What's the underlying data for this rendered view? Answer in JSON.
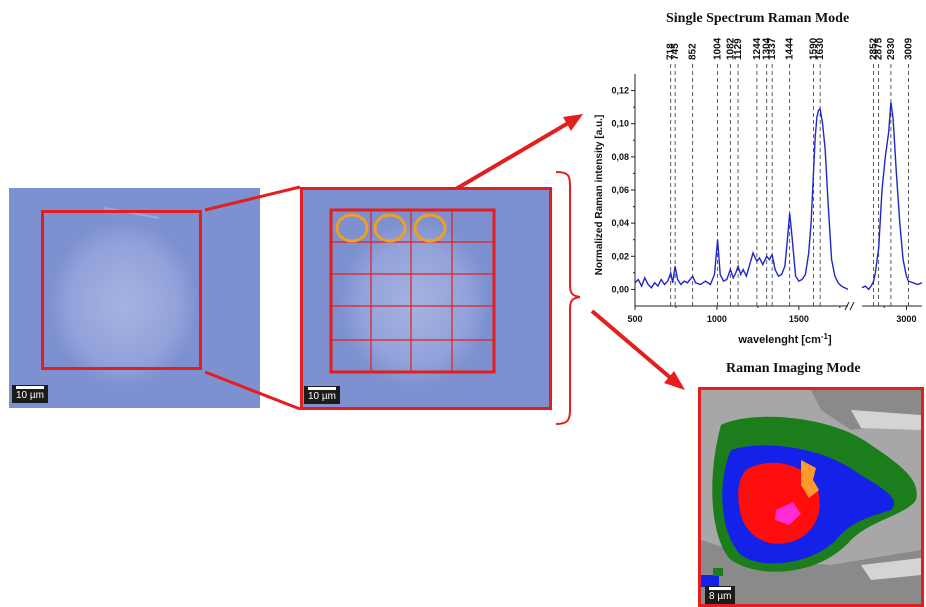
{
  "panels": {
    "left_scalebar": "10 µm",
    "middle_scalebar": "10 µm",
    "imaging_scalebar": "8 µm"
  },
  "chart_data": {
    "type": "line",
    "title": "Single Spectrum Raman Mode",
    "xlabel": "wavelenght [cm-1]",
    "xlabel_text": "wavelenght [cm",
    "xlabel_sup": "-1",
    "xlabel_close": "]",
    "ylabel": "Normalized Raman intensity [a.u.]",
    "y_ticks": [
      "0,00",
      "0,02",
      "0,04",
      "0,06",
      "0,08",
      "0,10",
      "0,12"
    ],
    "ylim": [
      -0.01,
      0.13
    ],
    "x_ticks": [
      "500",
      "1000",
      "1500",
      "3000"
    ],
    "x_break": [
      1800,
      2800
    ],
    "peak_labels": [
      "718",
      "745",
      "852",
      "1004",
      "1082",
      "1129",
      "1244",
      "1304",
      "1337",
      "1444",
      "1590",
      "1630",
      "2852",
      "2875",
      "2930",
      "3009"
    ],
    "series": [
      {
        "color": "#1f28c8",
        "segments": [
          {
            "x": [
              500,
              520,
              540,
              560,
              580,
              600,
              620,
              640,
              660,
              680,
              700,
              718,
              730,
              745,
              760,
              780,
              800,
              820,
              852,
              870,
              900,
              930,
              960,
              985,
              1004,
              1020,
              1040,
              1060,
              1082,
              1100,
              1115,
              1129,
              1145,
              1160,
              1180,
              1200,
              1220,
              1244,
              1260,
              1280,
              1304,
              1320,
              1337,
              1355,
              1375,
              1395,
              1415,
              1430,
              1444,
              1460,
              1480,
              1500,
              1520,
              1540,
              1560,
              1575,
              1590,
              1600,
              1610,
              1620,
              1630,
              1645,
              1660,
              1680,
              1700,
              1720,
              1740,
              1760,
              1780,
              1800
            ],
            "y": [
              0.004,
              0.006,
              0.002,
              0.007,
              0.003,
              0.001,
              0.004,
              0.002,
              0.006,
              0.003,
              0.005,
              0.01,
              0.004,
              0.014,
              0.006,
              0.003,
              0.005,
              0.004,
              0.008,
              0.004,
              0.003,
              0.005,
              0.003,
              0.009,
              0.03,
              0.009,
              0.005,
              0.006,
              0.012,
              0.007,
              0.01,
              0.014,
              0.009,
              0.012,
              0.008,
              0.015,
              0.022,
              0.017,
              0.019,
              0.015,
              0.02,
              0.018,
              0.021,
              0.012,
              0.008,
              0.009,
              0.014,
              0.03,
              0.046,
              0.03,
              0.008,
              0.005,
              0.006,
              0.009,
              0.022,
              0.04,
              0.072,
              0.092,
              0.104,
              0.108,
              0.109,
              0.1,
              0.085,
              0.05,
              0.018,
              0.008,
              0.004,
              0.002,
              0.001,
              0.0
            ]
          },
          {
            "x": [
              2800,
              2815,
              2830,
              2845,
              2852,
              2860,
              2875,
              2890,
              2905,
              2920,
              2930,
              2940,
              2955,
              2970,
              2985,
              3000,
              3009,
              3030,
              3050,
              3070
            ],
            "y": [
              0.001,
              0.002,
              0.0,
              0.003,
              0.005,
              0.01,
              0.025,
              0.06,
              0.08,
              0.095,
              0.113,
              0.103,
              0.07,
              0.04,
              0.018,
              0.008,
              0.005,
              0.004,
              0.003,
              0.004
            ]
          }
        ]
      }
    ]
  },
  "imaging": {
    "title": "Raman Imaging Mode",
    "colors": {
      "background": "#a7a7a7",
      "dark_gray": "#8a8a8a",
      "light": "#d4d4d4",
      "green": "#1c7d1c",
      "blue": "#1421e8",
      "red": "#ff0d0d",
      "orange": "#ff9a2a",
      "magenta": "#ff2ad4"
    }
  },
  "accent": {
    "red": "#e41e1e",
    "orange": "#f0a020"
  }
}
